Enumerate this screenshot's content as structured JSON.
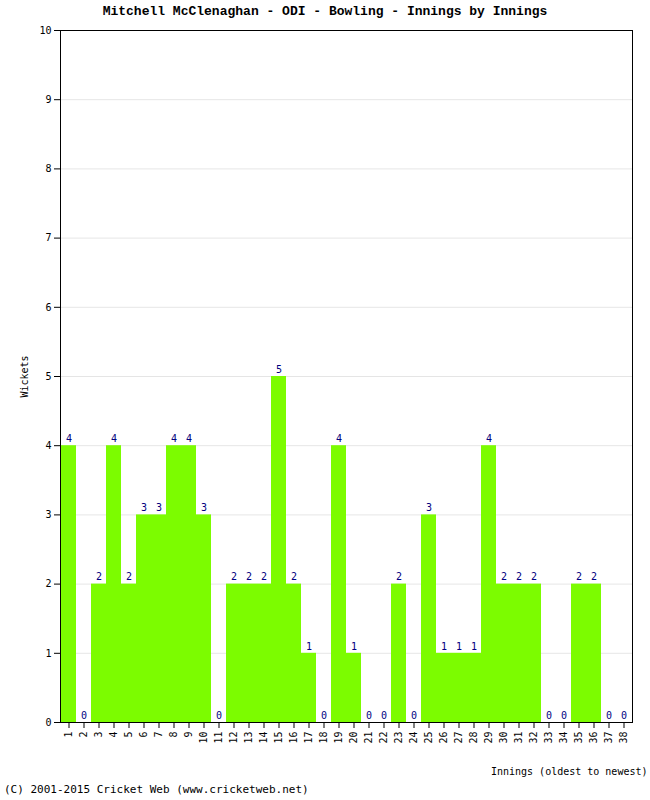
{
  "chart_data": {
    "type": "bar",
    "title": "Mitchell McClenaghan - ODI - Bowling - Innings by Innings",
    "x_label": "Innings (oldest to newest)",
    "y_label": "Wickets",
    "caption": "(C) 2001-2015 Cricket Web (www.cricketweb.net)",
    "categories": [
      "1",
      "2",
      "3",
      "4",
      "5",
      "6",
      "7",
      "8",
      "9",
      "10",
      "11",
      "12",
      "13",
      "14",
      "15",
      "16",
      "17",
      "18",
      "19",
      "20",
      "21",
      "22",
      "23",
      "24",
      "25",
      "26",
      "27",
      "28",
      "29",
      "30",
      "31",
      "32",
      "33",
      "34",
      "35",
      "36",
      "37",
      "38"
    ],
    "values": [
      4,
      0,
      2,
      4,
      2,
      3,
      3,
      4,
      4,
      3,
      0,
      2,
      2,
      2,
      5,
      2,
      1,
      0,
      4,
      1,
      0,
      0,
      2,
      0,
      3,
      1,
      1,
      1,
      4,
      2,
      2,
      2,
      0,
      0,
      2,
      2,
      0,
      0
    ],
    "color": "#7cfc00",
    "ylim": [
      0,
      10
    ],
    "yticks": [
      0,
      1,
      2,
      3,
      4,
      5,
      6,
      7,
      8,
      9,
      10
    ],
    "grid": true,
    "data_labels": true
  }
}
